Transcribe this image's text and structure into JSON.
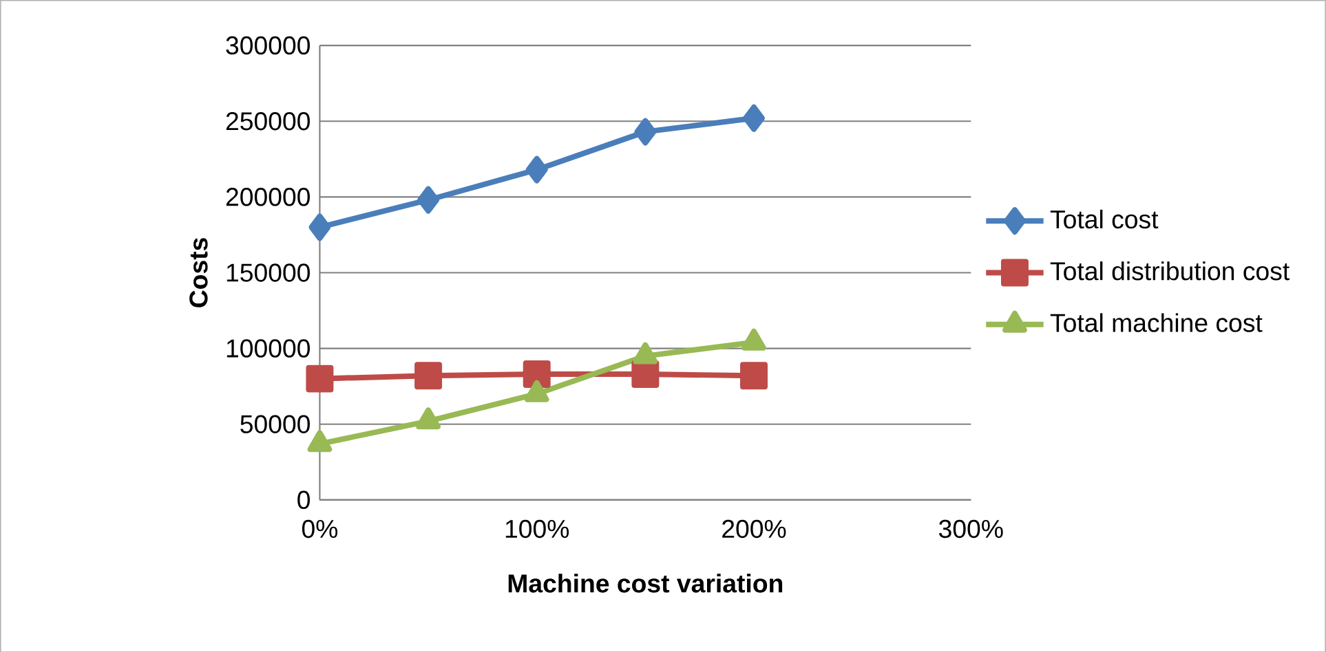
{
  "chart_data": {
    "type": "line",
    "xlabel": "Machine cost variation",
    "ylabel": "Costs",
    "x": [
      0,
      50,
      100,
      150,
      200
    ],
    "series": [
      {
        "name": "Total cost",
        "color": "#4a7ebb",
        "marker": "diamond",
        "values": [
          180000,
          198000,
          218000,
          243000,
          252000
        ]
      },
      {
        "name": "Total distribution cost",
        "color": "#be4b48",
        "marker": "square",
        "values": [
          80000,
          82000,
          83000,
          83000,
          82000
        ]
      },
      {
        "name": "Total machine cost",
        "color": "#98b954",
        "marker": "triangle",
        "values": [
          37000,
          52000,
          70000,
          95000,
          104000
        ]
      }
    ],
    "xlim": [
      0,
      300
    ],
    "xticks": [
      {
        "value": 0,
        "label": "0%"
      },
      {
        "value": 100,
        "label": "100%"
      },
      {
        "value": 200,
        "label": "200%"
      },
      {
        "value": 300,
        "label": "300%"
      }
    ],
    "ylim": [
      0,
      300000
    ],
    "yticks": [
      0,
      50000,
      100000,
      150000,
      200000,
      250000,
      300000
    ],
    "grid": "y",
    "legend": "right"
  }
}
